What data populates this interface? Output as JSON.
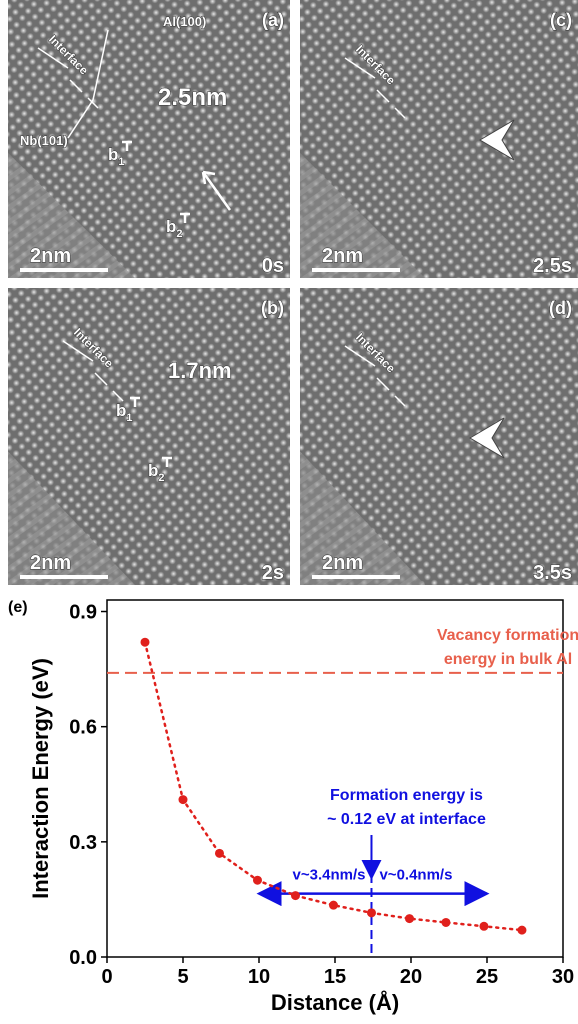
{
  "panels": [
    {
      "label": "(a)",
      "interface": "Interface",
      "annotations": [
        "Al(100)",
        "Nb(101)",
        "2.5nm"
      ],
      "burgers": [
        {
          "symbol": "b",
          "index": "1"
        },
        {
          "symbol": "b",
          "index": "2"
        }
      ],
      "scale_bar": "2nm",
      "time": "0s"
    },
    {
      "label": "(c)",
      "interface": "Interface",
      "annotations": [],
      "burgers": [],
      "scale_bar": "2nm",
      "time": "2.5s"
    },
    {
      "label": "(b)",
      "interface": "Interface",
      "annotations": [
        "1.7nm"
      ],
      "burgers": [
        {
          "symbol": "b",
          "index": "1"
        },
        {
          "symbol": "b",
          "index": "2"
        }
      ],
      "scale_bar": "2nm",
      "time": "2s"
    },
    {
      "label": "(d)",
      "interface": "Interface",
      "annotations": [],
      "burgers": [],
      "scale_bar": "2nm",
      "time": "3.5s"
    }
  ],
  "chart_data": {
    "type": "scatter",
    "panel_label": "(e)",
    "x_label": "Distance (Å)",
    "y_label": "Interaction Energy (eV)",
    "x": [
      2.5,
      5.0,
      7.4,
      9.9,
      12.4,
      14.9,
      17.4,
      19.9,
      22.3,
      24.8,
      27.3
    ],
    "values": [
      0.82,
      0.41,
      0.27,
      0.2,
      0.16,
      0.135,
      0.115,
      0.1,
      0.09,
      0.08,
      0.07
    ],
    "color": "#e0201c",
    "xlim": [
      0,
      30
    ],
    "xticks": [
      0,
      5,
      10,
      15,
      20,
      25,
      30
    ],
    "ylim": [
      0,
      0.93
    ],
    "yticks": [
      {
        "value": 0,
        "label": "0.0"
      },
      0.3,
      0.6,
      0.9
    ],
    "hline": {
      "y": 0.74,
      "color": "#e8604c",
      "text": [
        "Vacancy formation",
        "energy in bulk Al"
      ]
    },
    "vline": {
      "x": 17.4,
      "color": "#1010e0",
      "text": [
        "Formation energy is",
        "~ 0.12 eV at interface"
      ]
    },
    "arrow": {
      "x": [
        10,
        25
      ],
      "y": 0.165,
      "left_text": "v~3.4nm/s",
      "right_text": "v~0.4nm/s"
    }
  }
}
